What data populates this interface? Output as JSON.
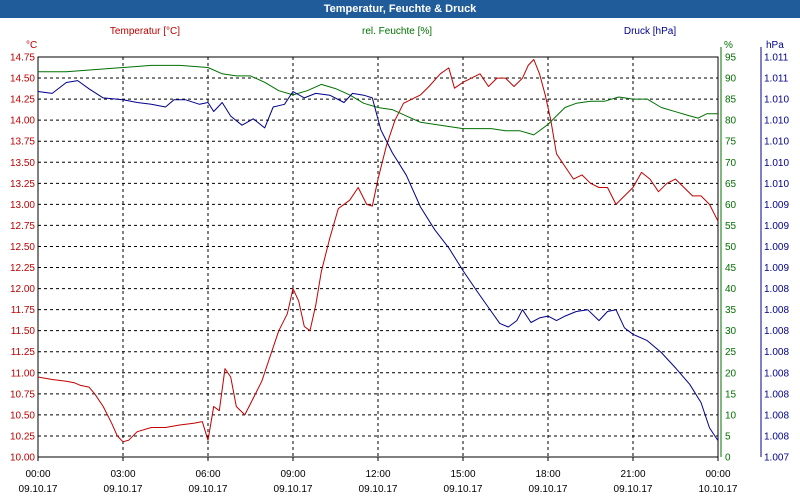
{
  "window": {
    "title": "Temperatur, Feuchte & Druck"
  },
  "colors": {
    "temperature": "#c00000",
    "humidity": "#007000",
    "pressure": "#00008b",
    "titlebar": "#1f5c99",
    "grid": "#000000"
  },
  "chart_data": {
    "type": "line",
    "title": "Temperatur, Feuchte & Druck",
    "grid": true,
    "x_ticks": [
      {
        "hours": 0,
        "time": "00:00",
        "date": "09.10.17"
      },
      {
        "hours": 3,
        "time": "03:00",
        "date": "09.10.17"
      },
      {
        "hours": 6,
        "time": "06:00",
        "date": "09.10.17"
      },
      {
        "hours": 9,
        "time": "09:00",
        "date": "09.10.17"
      },
      {
        "hours": 12,
        "time": "12:00",
        "date": "09.10.17"
      },
      {
        "hours": 15,
        "time": "15:00",
        "date": "09.10.17"
      },
      {
        "hours": 18,
        "time": "18:00",
        "date": "09.10.17"
      },
      {
        "hours": 21,
        "time": "21:00",
        "date": "09.10.17"
      },
      {
        "hours": 24,
        "time": "00:00",
        "date": "10.10.17"
      }
    ],
    "axes": {
      "temperature": {
        "unit": "°C",
        "label": "Temperatur [°C]",
        "ylim": [
          10.0,
          14.75
        ],
        "ticks": [
          "10.00",
          "10.25",
          "10.50",
          "10.75",
          "11.00",
          "11.25",
          "11.50",
          "11.75",
          "12.00",
          "12.25",
          "12.50",
          "12.75",
          "13.00",
          "13.25",
          "13.50",
          "13.75",
          "14.00",
          "14.25",
          "14.50",
          "14.75"
        ]
      },
      "humidity": {
        "unit": "%",
        "label": "rel. Feuchte [%]",
        "ylim": [
          0,
          95
        ],
        "ticks": [
          "0",
          "5",
          "10",
          "15",
          "20",
          "25",
          "30",
          "35",
          "40",
          "45",
          "50",
          "55",
          "60",
          "65",
          "70",
          "75",
          "80",
          "85",
          "90",
          "95"
        ]
      },
      "pressure": {
        "unit": "hPa",
        "label": "Druck [hPa]",
        "ylim": [
          1007.0,
          1011.4
        ],
        "ticks": [
          "1.007",
          "1.008",
          "1.008",
          "1.008",
          "1.008",
          "1.008",
          "1.008",
          "1.008",
          "1.008",
          "1.009",
          "1.009",
          "1.009",
          "1.009",
          "1.010",
          "1.010",
          "1.010",
          "1.010",
          "1.010",
          "1.011",
          "1.011"
        ]
      }
    },
    "series": [
      {
        "name": "Temperatur [°C]",
        "axis": "temperature",
        "points": [
          [
            0,
            10.95
          ],
          [
            0.5,
            10.92
          ],
          [
            1,
            10.9
          ],
          [
            1.3,
            10.88
          ],
          [
            1.5,
            10.85
          ],
          [
            1.8,
            10.83
          ],
          [
            2,
            10.75
          ],
          [
            2.3,
            10.6
          ],
          [
            2.6,
            10.4
          ],
          [
            2.8,
            10.25
          ],
          [
            3,
            10.18
          ],
          [
            3.2,
            10.2
          ],
          [
            3.5,
            10.3
          ],
          [
            4,
            10.35
          ],
          [
            4.5,
            10.35
          ],
          [
            5,
            10.38
          ],
          [
            5.5,
            10.4
          ],
          [
            5.8,
            10.42
          ],
          [
            6,
            10.2
          ],
          [
            6.2,
            10.6
          ],
          [
            6.4,
            10.55
          ],
          [
            6.6,
            11.05
          ],
          [
            6.8,
            10.95
          ],
          [
            7,
            10.6
          ],
          [
            7.3,
            10.5
          ],
          [
            7.6,
            10.7
          ],
          [
            7.9,
            10.9
          ],
          [
            8.2,
            11.2
          ],
          [
            8.5,
            11.5
          ],
          [
            8.8,
            11.7
          ],
          [
            9,
            12.0
          ],
          [
            9.2,
            11.85
          ],
          [
            9.4,
            11.55
          ],
          [
            9.6,
            11.5
          ],
          [
            9.8,
            11.8
          ],
          [
            10,
            12.2
          ],
          [
            10.3,
            12.6
          ],
          [
            10.6,
            12.95
          ],
          [
            11,
            13.05
          ],
          [
            11.3,
            13.2
          ],
          [
            11.6,
            13.0
          ],
          [
            11.8,
            12.98
          ],
          [
            12,
            13.3
          ],
          [
            12.3,
            13.7
          ],
          [
            12.6,
            14.0
          ],
          [
            12.9,
            14.2
          ],
          [
            13.2,
            14.25
          ],
          [
            13.5,
            14.3
          ],
          [
            13.8,
            14.4
          ],
          [
            14.2,
            14.55
          ],
          [
            14.5,
            14.62
          ],
          [
            14.7,
            14.38
          ],
          [
            15,
            14.45
          ],
          [
            15.3,
            14.5
          ],
          [
            15.6,
            14.55
          ],
          [
            15.9,
            14.4
          ],
          [
            16.2,
            14.5
          ],
          [
            16.5,
            14.5
          ],
          [
            16.8,
            14.4
          ],
          [
            17.1,
            14.5
          ],
          [
            17.3,
            14.65
          ],
          [
            17.5,
            14.72
          ],
          [
            17.7,
            14.55
          ],
          [
            17.9,
            14.3
          ],
          [
            18.1,
            14.0
          ],
          [
            18.3,
            13.6
          ],
          [
            18.6,
            13.45
          ],
          [
            18.9,
            13.3
          ],
          [
            19.2,
            13.35
          ],
          [
            19.5,
            13.25
          ],
          [
            19.8,
            13.2
          ],
          [
            20.1,
            13.2
          ],
          [
            20.4,
            13.0
          ],
          [
            20.7,
            13.1
          ],
          [
            21,
            13.2
          ],
          [
            21.3,
            13.38
          ],
          [
            21.6,
            13.3
          ],
          [
            21.9,
            13.15
          ],
          [
            22.2,
            13.25
          ],
          [
            22.5,
            13.3
          ],
          [
            22.8,
            13.2
          ],
          [
            23.1,
            13.1
          ],
          [
            23.4,
            13.1
          ],
          [
            23.7,
            13.0
          ],
          [
            24,
            12.8
          ]
        ]
      },
      {
        "name": "rel. Feuchte [%]",
        "axis": "humidity",
        "points": [
          [
            0,
            91.5
          ],
          [
            1,
            91.5
          ],
          [
            2,
            92
          ],
          [
            3,
            92.5
          ],
          [
            4,
            93
          ],
          [
            5,
            93
          ],
          [
            6,
            92.5
          ],
          [
            6.5,
            91
          ],
          [
            7,
            90.5
          ],
          [
            7.5,
            90.5
          ],
          [
            8,
            89
          ],
          [
            8.5,
            87
          ],
          [
            9,
            86
          ],
          [
            9.5,
            87
          ],
          [
            10,
            88.5
          ],
          [
            10.5,
            87.5
          ],
          [
            11,
            86
          ],
          [
            11.5,
            84
          ],
          [
            12,
            83
          ],
          [
            12.5,
            82.5
          ],
          [
            13,
            81
          ],
          [
            13.5,
            79.5
          ],
          [
            14,
            79
          ],
          [
            14.5,
            78.5
          ],
          [
            15,
            78
          ],
          [
            15.5,
            78
          ],
          [
            16,
            78
          ],
          [
            16.5,
            77.5
          ],
          [
            17,
            77.5
          ],
          [
            17.5,
            76.5
          ],
          [
            18,
            79
          ],
          [
            18.3,
            81
          ],
          [
            18.6,
            83
          ],
          [
            19,
            84
          ],
          [
            19.5,
            84.5
          ],
          [
            20,
            84.5
          ],
          [
            20.5,
            85.5
          ],
          [
            21,
            85
          ],
          [
            21.5,
            85
          ],
          [
            22,
            83
          ],
          [
            22.5,
            82
          ],
          [
            23,
            81
          ],
          [
            23.3,
            80.5
          ],
          [
            23.6,
            81.5
          ],
          [
            24,
            81.5
          ]
        ]
      },
      {
        "name": "Druck [hPa]",
        "axis": "pressure",
        "points": [
          [
            0,
            1011.02
          ],
          [
            0.5,
            1011.0
          ],
          [
            1,
            1011.12
          ],
          [
            1.4,
            1011.14
          ],
          [
            1.8,
            1011.05
          ],
          [
            2.3,
            1010.95
          ],
          [
            3,
            1010.93
          ],
          [
            3.5,
            1010.9
          ],
          [
            4,
            1010.88
          ],
          [
            4.5,
            1010.85
          ],
          [
            4.8,
            1010.93
          ],
          [
            5.2,
            1010.93
          ],
          [
            5.7,
            1010.88
          ],
          [
            6,
            1010.9
          ],
          [
            6.2,
            1010.8
          ],
          [
            6.5,
            1010.9
          ],
          [
            6.8,
            1010.75
          ],
          [
            7.2,
            1010.65
          ],
          [
            7.6,
            1010.72
          ],
          [
            8,
            1010.62
          ],
          [
            8.3,
            1010.85
          ],
          [
            8.7,
            1010.88
          ],
          [
            9,
            1011.02
          ],
          [
            9.4,
            1010.95
          ],
          [
            9.8,
            1011.0
          ],
          [
            10.3,
            1010.98
          ],
          [
            10.8,
            1010.9
          ],
          [
            11.1,
            1011.0
          ],
          [
            11.5,
            1010.98
          ],
          [
            11.8,
            1010.95
          ],
          [
            12.1,
            1010.6
          ],
          [
            12.5,
            1010.35
          ],
          [
            13,
            1010.1
          ],
          [
            13.5,
            1009.75
          ],
          [
            14,
            1009.5
          ],
          [
            14.5,
            1009.3
          ],
          [
            15,
            1009.05
          ],
          [
            15.5,
            1008.82
          ],
          [
            16,
            1008.6
          ],
          [
            16.3,
            1008.47
          ],
          [
            16.6,
            1008.43
          ],
          [
            16.9,
            1008.5
          ],
          [
            17.1,
            1008.62
          ],
          [
            17.4,
            1008.48
          ],
          [
            17.7,
            1008.53
          ],
          [
            18,
            1008.55
          ],
          [
            18.3,
            1008.5
          ],
          [
            18.6,
            1008.55
          ],
          [
            19,
            1008.6
          ],
          [
            19.4,
            1008.62
          ],
          [
            19.8,
            1008.5
          ],
          [
            20.1,
            1008.6
          ],
          [
            20.4,
            1008.62
          ],
          [
            20.7,
            1008.42
          ],
          [
            21,
            1008.35
          ],
          [
            21.5,
            1008.28
          ],
          [
            22,
            1008.15
          ],
          [
            22.5,
            1007.98
          ],
          [
            23,
            1007.8
          ],
          [
            23.4,
            1007.6
          ],
          [
            23.7,
            1007.32
          ],
          [
            24,
            1007.18
          ]
        ]
      }
    ]
  }
}
